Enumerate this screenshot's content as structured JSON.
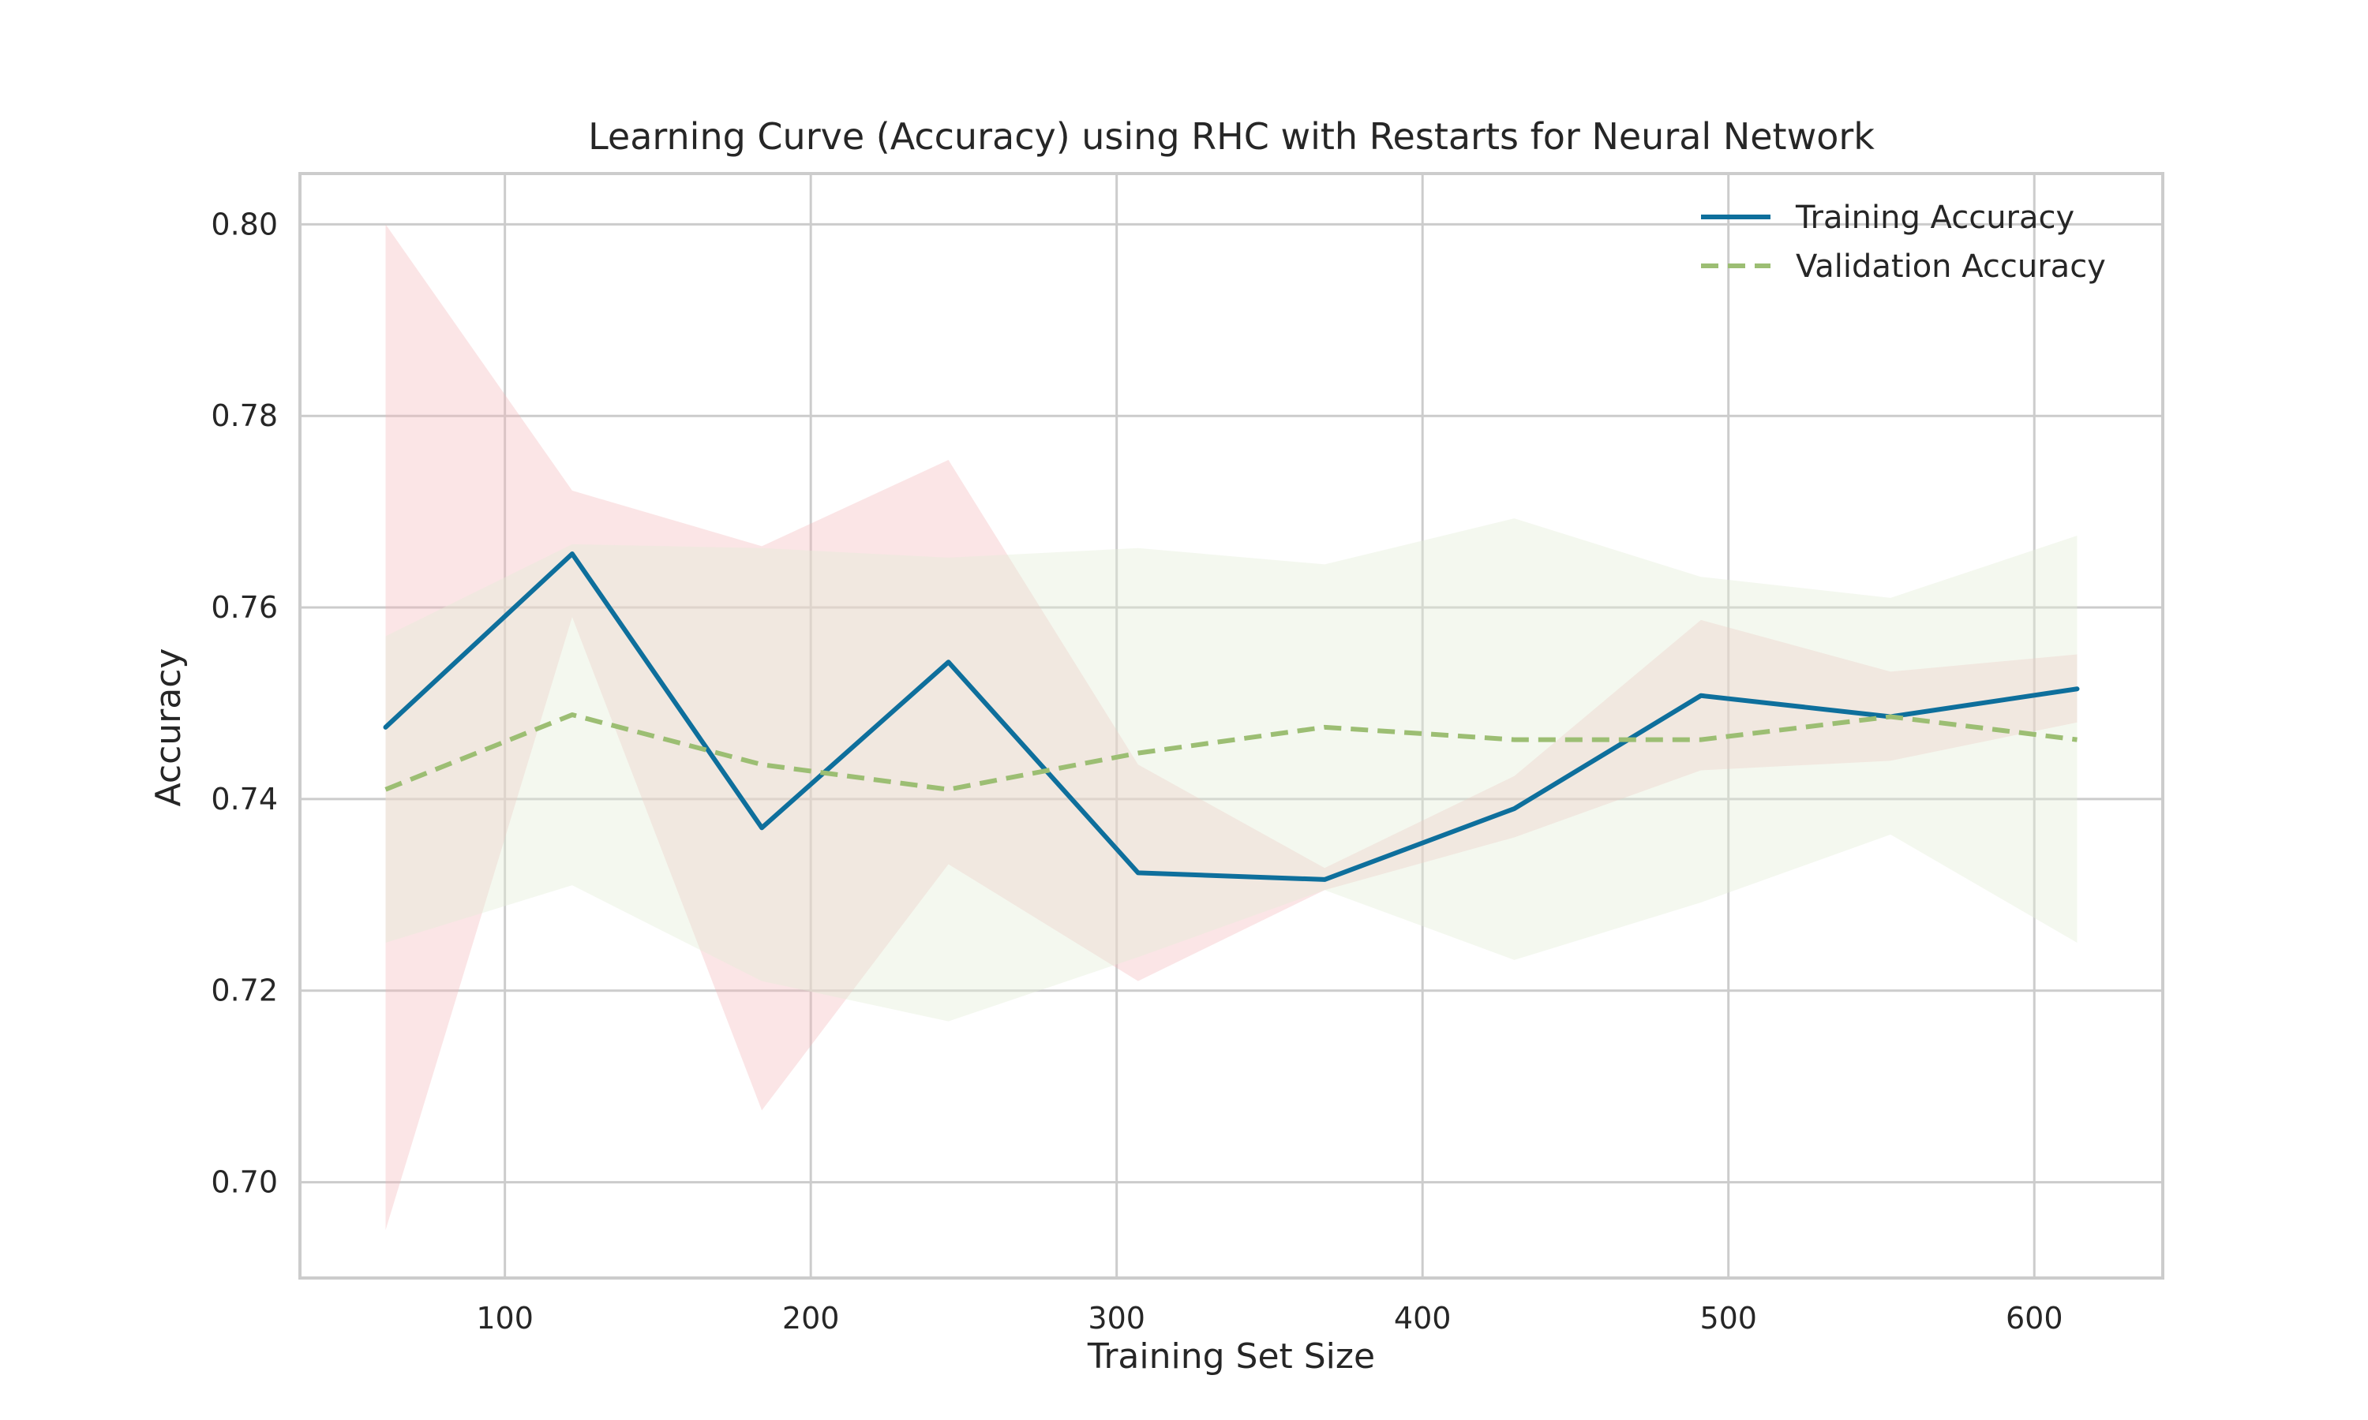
{
  "chart_data": {
    "type": "line",
    "title": "Learning Curve (Accuracy) using RHC with Restarts for Neural Network",
    "xlabel": "Training Set Size",
    "ylabel": "Accuracy",
    "xlim": [
      33,
      642
    ],
    "ylim": [
      0.69,
      0.8053
    ],
    "xticks": [
      100,
      200,
      300,
      400,
      500,
      600
    ],
    "yticks": [
      0.7,
      0.72,
      0.74,
      0.76,
      0.78,
      0.8
    ],
    "xtick_labels": [
      "100",
      "200",
      "300",
      "400",
      "500",
      "600"
    ],
    "ytick_labels": [
      "0.70",
      "0.72",
      "0.74",
      "0.76",
      "0.78",
      "0.80"
    ],
    "grid": true,
    "legend_position": "top-right",
    "x": [
      61,
      122,
      184,
      245,
      307,
      368,
      430,
      491,
      553,
      614
    ],
    "series": [
      {
        "name": "Training Accuracy",
        "color": "#0e6f9c",
        "style": "solid",
        "band_color": "#f4b4b8",
        "values": [
          0.7475,
          0.7656,
          0.737,
          0.7543,
          0.7323,
          0.7316,
          0.739,
          0.7508,
          0.7486,
          0.7515
        ],
        "lower": [
          0.695,
          0.759,
          0.7075,
          0.7332,
          0.721,
          0.7305,
          0.736,
          0.743,
          0.744,
          0.748
        ],
        "upper": [
          0.8,
          0.7722,
          0.7664,
          0.7754,
          0.7436,
          0.7328,
          0.7424,
          0.7587,
          0.7533,
          0.7551
        ]
      },
      {
        "name": "Validation Accuracy",
        "color": "#9cbe73",
        "style": "dashed",
        "band_color": "#e3edd6",
        "values": [
          0.741,
          0.7488,
          0.7436,
          0.741,
          0.7448,
          0.7475,
          0.7462,
          0.7462,
          0.7486,
          0.7462
        ],
        "lower": [
          0.725,
          0.731,
          0.721,
          0.7168,
          0.7235,
          0.7305,
          0.7232,
          0.7292,
          0.7363,
          0.725
        ],
        "upper": [
          0.757,
          0.7666,
          0.7662,
          0.7652,
          0.7662,
          0.7645,
          0.7693,
          0.7632,
          0.761,
          0.7675
        ]
      }
    ]
  }
}
